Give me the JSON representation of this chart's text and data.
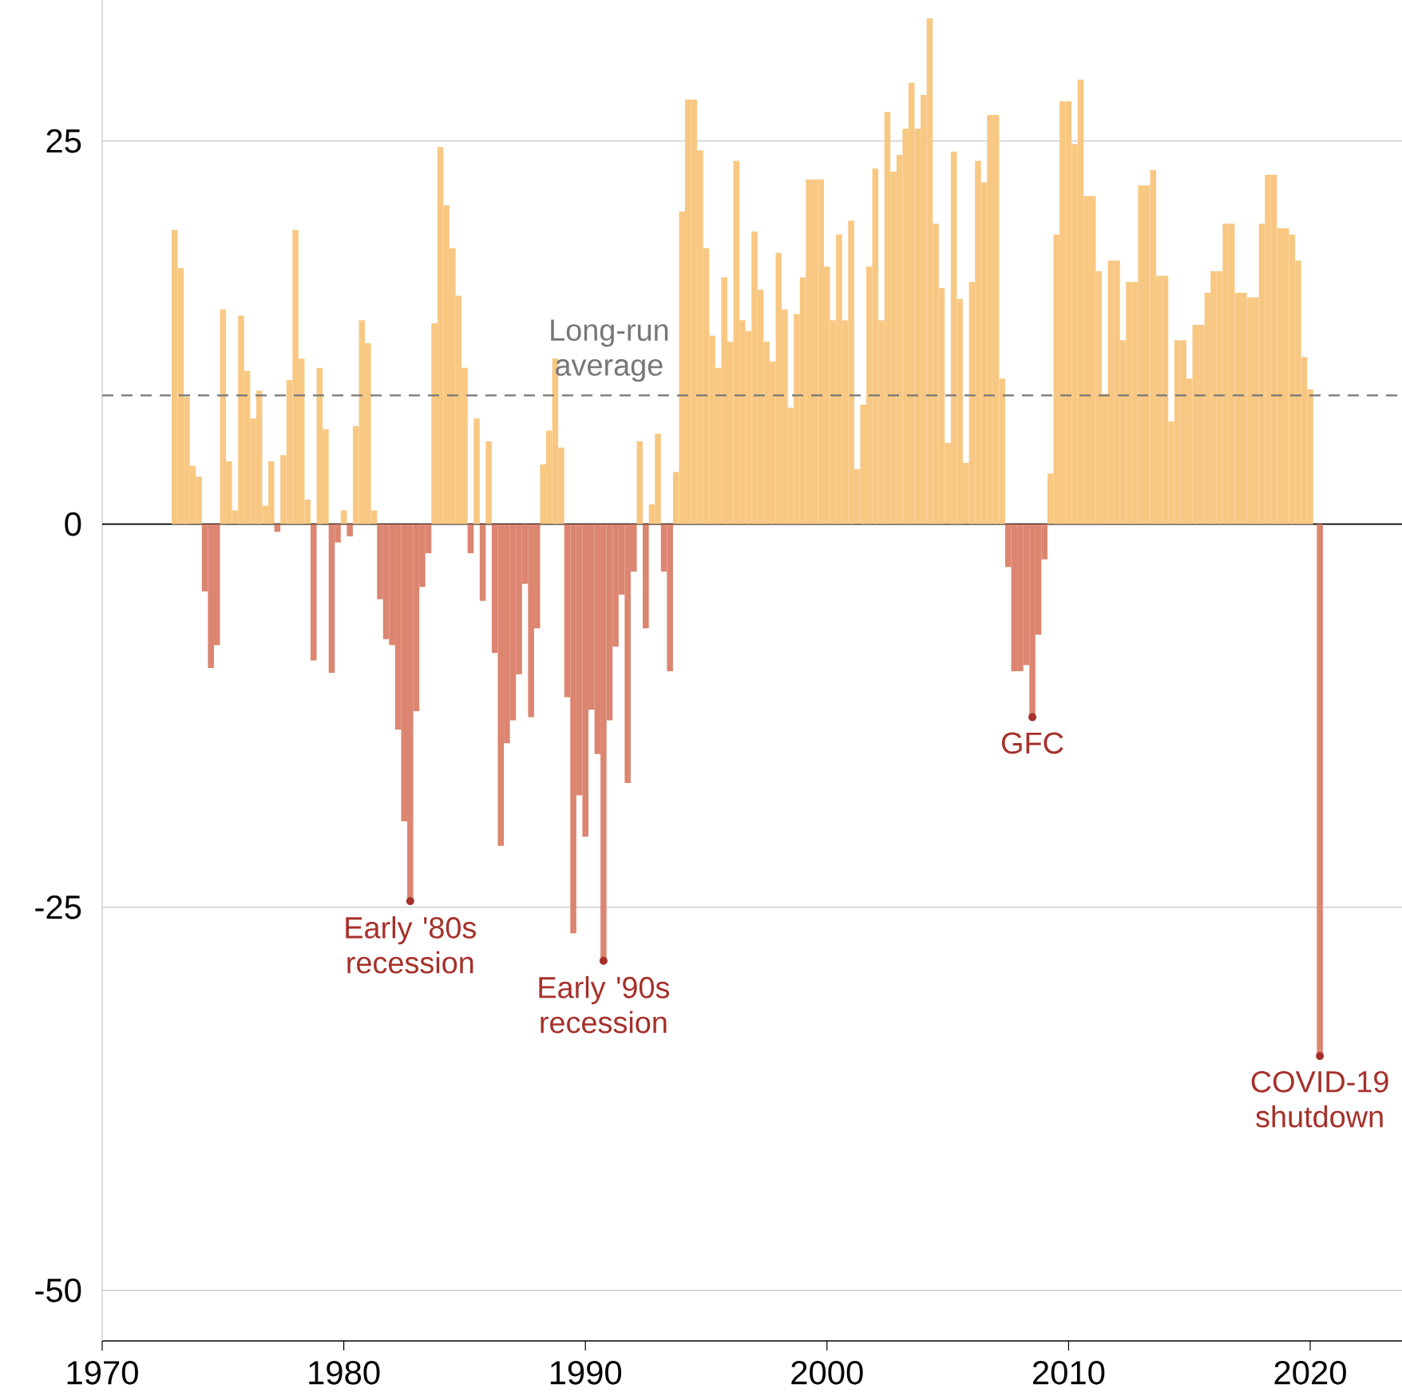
{
  "chart_data": {
    "type": "bar",
    "series": [
      {
        "color": "#f8c883",
        "x": [
          1973,
          1973.25,
          1973.5,
          1973.75,
          1974,
          1975,
          1975.25,
          1975.5,
          1975.75,
          1976,
          1976.25,
          1976.5,
          1976.75,
          1977,
          1977.5,
          1977.75,
          1978,
          1978.25,
          1978.5,
          1979,
          1979.25,
          1980,
          1980.5,
          1980.75,
          1981,
          1981.25,
          1983.75,
          1984,
          1984.25,
          1984.5,
          1984.75,
          1985,
          1985.5,
          1986,
          1988.25,
          1988.5,
          1988.75,
          1989,
          1992.25,
          1992.75,
          1993,
          1993.75,
          1994,
          1994.25,
          1994.5,
          1994.75,
          1995,
          1995.25,
          1995.5,
          1995.75,
          1996,
          1996.25,
          1996.5,
          1996.75,
          1997,
          1997.25,
          1997.5,
          1997.75,
          1998,
          1998.25,
          1998.5,
          1998.75,
          1999,
          1999.25,
          1999.5,
          1999.75,
          2000,
          2000.25,
          2000.5,
          2000.75,
          2001,
          2001.25,
          2001.5,
          2001.75,
          2002,
          2002.25,
          2002.5,
          2002.75,
          2003,
          2003.25,
          2003.5,
          2003.75,
          2004,
          2004.25,
          2004.5,
          2004.75,
          2005,
          2005.25,
          2005.5,
          2005.75,
          2006,
          2006.25,
          2006.5,
          2006.75,
          2007,
          2007.25,
          2009.25,
          2009.5,
          2009.75,
          2010,
          2010.25,
          2010.5,
          2010.75,
          2011,
          2011.25,
          2011.5,
          2011.75,
          2012,
          2012.25,
          2012.5,
          2012.75,
          2013,
          2013.25,
          2013.5,
          2013.75,
          2014,
          2014.25,
          2014.5,
          2014.75,
          2015,
          2015.25,
          2015.5,
          2015.75,
          2016,
          2016.25,
          2016.5,
          2016.75,
          2017,
          2017.25,
          2017.5,
          2017.75,
          2018,
          2018.25,
          2018.5,
          2018.75,
          2019,
          2019.25,
          2019.5,
          2019.75,
          2020
        ],
        "values": [
          19.2,
          16.7,
          8.3,
          3.8,
          3.1,
          14.0,
          4.1,
          0.9,
          13.6,
          10.0,
          6.9,
          8.7,
          1.2,
          4.1,
          4.5,
          9.4,
          19.2,
          10.8,
          1.6,
          10.2,
          6.2,
          0.9,
          6.4,
          13.3,
          11.8,
          0.9,
          13.1,
          24.6,
          20.8,
          18.0,
          14.9,
          10.2,
          6.9,
          5.4,
          3.9,
          6.1,
          10.8,
          5.0,
          5.4,
          1.3,
          5.9,
          3.4,
          20.4,
          27.7,
          27.7,
          24.4,
          18.0,
          12.3,
          10.2,
          16.1,
          11.9,
          23.7,
          13.3,
          12.6,
          19.1,
          15.3,
          11.9,
          10.6,
          17.7,
          14.0,
          7.6,
          13.7,
          16.1,
          22.5,
          22.5,
          22.5,
          16.8,
          13.3,
          18.9,
          13.3,
          19.8,
          3.6,
          7.8,
          16.8,
          23.2,
          13.3,
          26.9,
          23.0,
          24.1,
          25.8,
          28.8,
          25.8,
          28.0,
          33.0,
          19.6,
          15.4,
          5.3,
          24.3,
          14.7,
          4.0,
          15.8,
          23.7,
          22.3,
          26.7,
          26.7,
          9.5,
          3.3,
          18.9,
          27.6,
          27.6,
          24.8,
          29.0,
          21.4,
          21.4,
          16.5,
          8.5,
          17.2,
          17.2,
          12.0,
          15.8,
          15.8,
          22.1,
          22.1,
          23.1,
          16.2,
          16.2,
          6.7,
          12.0,
          12.0,
          9.5,
          13.0,
          13.0,
          15.1,
          16.5,
          16.5,
          19.6,
          19.6,
          15.1,
          15.1,
          14.8,
          14.8,
          19.6,
          22.8,
          22.8,
          19.3,
          19.3,
          18.9,
          17.2,
          10.9,
          8.8
        ]
      },
      {
        "color": "#dc8570",
        "x": [
          1974.25,
          1974.5,
          1974.75,
          1977.25,
          1978.75,
          1979.5,
          1979.75,
          1980.25,
          1981.5,
          1981.75,
          1982,
          1982.25,
          1982.5,
          1982.75,
          1983,
          1983.25,
          1983.5,
          1985.25,
          1985.75,
          1986.25,
          1986.5,
          1986.75,
          1987,
          1987.25,
          1987.5,
          1987.75,
          1988,
          1989.25,
          1989.5,
          1989.75,
          1990,
          1990.25,
          1990.5,
          1990.75,
          1991,
          1991.25,
          1991.5,
          1991.75,
          1992,
          1992.5,
          1993.25,
          1993.5,
          2007.5,
          2007.75,
          2008,
          2008.25,
          2008.5,
          2008.75,
          2009,
          2020.4
        ],
        "values": [
          -4.4,
          -9.4,
          -7.9,
          -0.5,
          -8.9,
          -9.7,
          -1.2,
          -0.8,
          -4.9,
          -7.5,
          -7.9,
          -13.4,
          -19.4,
          -24.6,
          -12.2,
          -4.1,
          -1.9,
          -1.9,
          -5.0,
          -8.4,
          -21.0,
          -14.3,
          -12.8,
          -9.8,
          -3.9,
          -12.6,
          -6.8,
          -11.3,
          -26.7,
          -17.7,
          -20.4,
          -12.1,
          -15.0,
          -28.5,
          -12.8,
          -8.0,
          -4.6,
          -16.9,
          -3.1,
          -6.8,
          -3.1,
          -9.6,
          -2.8,
          -9.6,
          -9.6,
          -9.2,
          -12.6,
          -7.2,
          -2.3,
          -34.7
        ]
      }
    ],
    "xlim": [
      1970,
      2023.8
    ],
    "ylim": [
      -53.3,
      34.2
    ],
    "xticks": [
      1970,
      1980,
      1990,
      2000,
      2010,
      2020
    ],
    "yticks": [
      -50,
      -25,
      0,
      25
    ],
    "grid": "y",
    "ref_lines": [
      {
        "axis": "y",
        "value": 8.4,
        "label": "Long-run average",
        "color": "#777777",
        "line_style": "dashed"
      }
    ],
    "annotations": [
      {
        "text": "Early '80s recession",
        "x": 1982.75,
        "y": -24.6
      },
      {
        "text": "Early '90s recession",
        "x": 1990.75,
        "y": -28.5
      },
      {
        "text": "GFC",
        "x": 2008.5,
        "y": -12.6
      },
      {
        "text": "COVID-19 shutdown",
        "x": 2020.4,
        "y": -34.7
      }
    ]
  }
}
